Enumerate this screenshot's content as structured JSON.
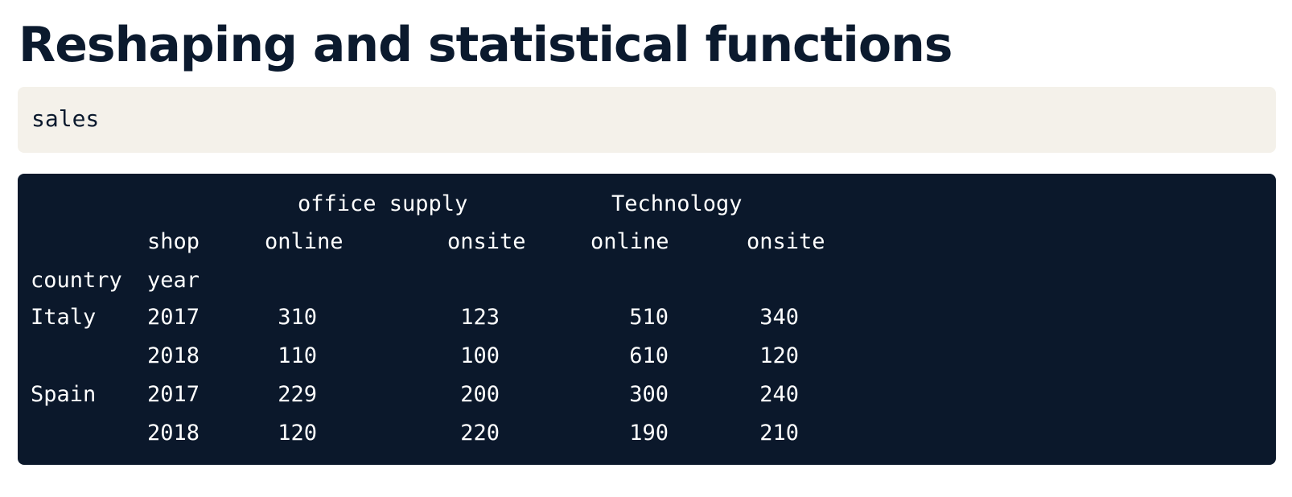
{
  "title": "Reshaping and statistical functions",
  "code_input": "sales",
  "output": {
    "column_level0": [
      "office supply",
      "Technology"
    ],
    "column_level1_name": "shop",
    "column_level1": [
      "online",
      "onsite",
      "online",
      "onsite"
    ],
    "index_names": [
      "country",
      "year"
    ],
    "rows": [
      {
        "country": "Italy",
        "year": "2017",
        "values": [
          "310",
          "123",
          "510",
          "340"
        ]
      },
      {
        "country": "",
        "year": "2018",
        "values": [
          "110",
          "100",
          "610",
          "120"
        ]
      },
      {
        "country": "Spain",
        "year": "2017",
        "values": [
          "229",
          "200",
          "300",
          "240"
        ]
      },
      {
        "country": "",
        "year": "2018",
        "values": [
          "120",
          "220",
          "190",
          "210"
        ]
      }
    ]
  }
}
